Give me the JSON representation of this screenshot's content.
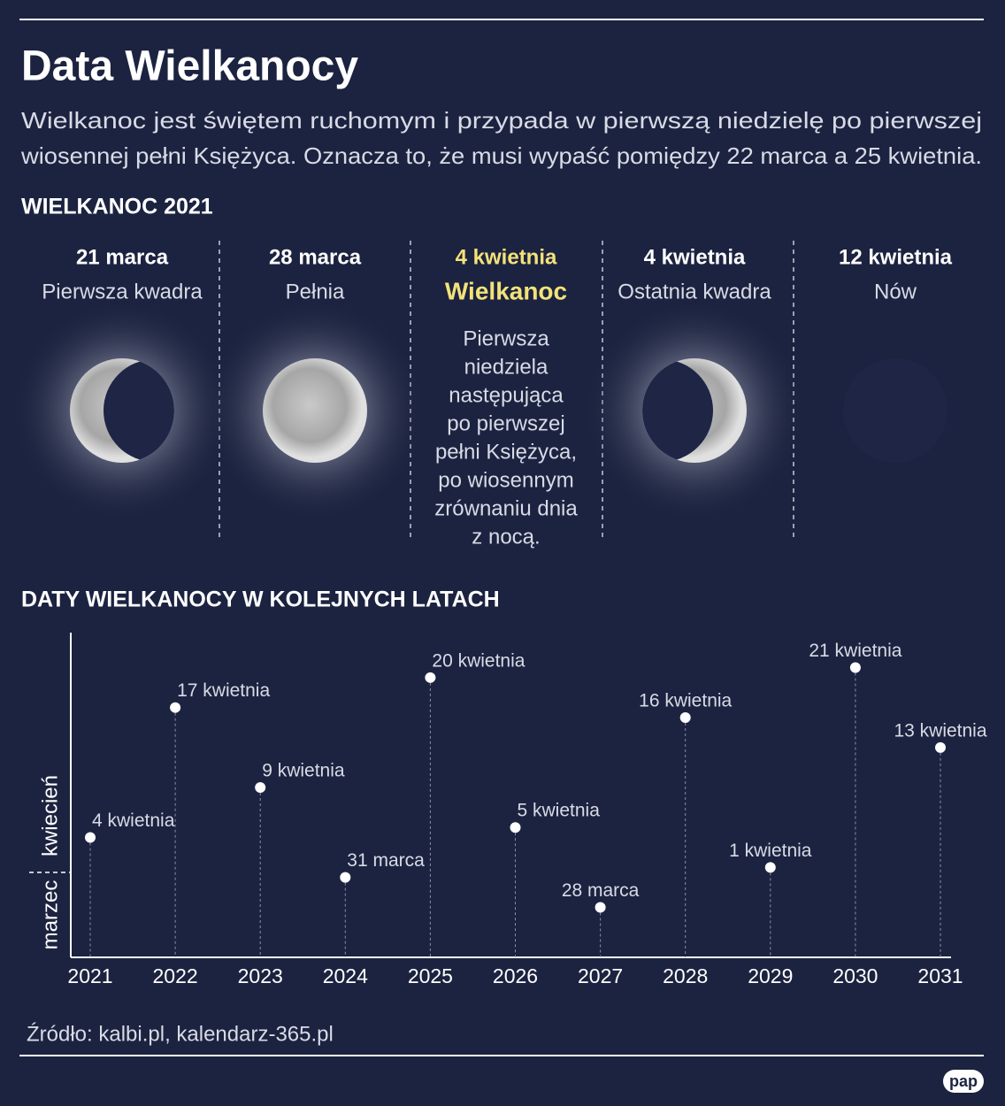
{
  "header": {
    "title": "Data Wielkanocy",
    "intro": [
      "Wielkanoc jest świętem ruchomym i przypada w pierwszą niedzielę po pierwszej",
      "wiosennej pełni Księżyca. Oznacza to, że musi wypaść pomiędzy 22 marca a 25 kwietnia."
    ]
  },
  "phases": {
    "title": "WIELKANOC 2021",
    "items": [
      {
        "date": "21 marca",
        "name": "Pierwsza kwadra"
      },
      {
        "date": "28 marca",
        "name": "Pełnia"
      },
      {
        "date": "4 kwietnia",
        "name": "Wielkanoc",
        "note": [
          "Pierwsza",
          "niedziela",
          "następująca",
          "po pierwszej",
          "pełni Księżyca,",
          "po wiosennym",
          "zrównaniu dnia",
          "z nocą."
        ]
      },
      {
        "date": "4 kwietnia",
        "name": "Ostatnia kwadra"
      },
      {
        "date": "12 kwietnia",
        "name": "Nów"
      }
    ]
  },
  "chart_data": {
    "type": "dot",
    "title": "DATY WIELKANOCY W KOLEJNYCH LATACH",
    "categories": [
      "2021",
      "2022",
      "2023",
      "2024",
      "2025",
      "2026",
      "2027",
      "2028",
      "2029",
      "2030",
      "2031"
    ],
    "values": [
      4,
      17,
      9,
      0,
      20,
      5,
      -3,
      16,
      1,
      21,
      13
    ],
    "value_labels": [
      "4 kwietnia",
      "17 kwietnia",
      "9 kwietnia",
      "31 marca",
      "20 kwietnia",
      "5 kwietnia",
      "28 marca",
      "16 kwietnia",
      "1 kwietnia",
      "21 kwietnia",
      "13 kwietnia"
    ],
    "ylim": [
      -8,
      24.5
    ],
    "month_divider": 0.5,
    "y_labels": [
      "marzec",
      "kwiecień"
    ],
    "color": "#ffffff"
  },
  "source": "Źródło: kalbi.pl, kalendarz-365.pl",
  "logo": "pap"
}
